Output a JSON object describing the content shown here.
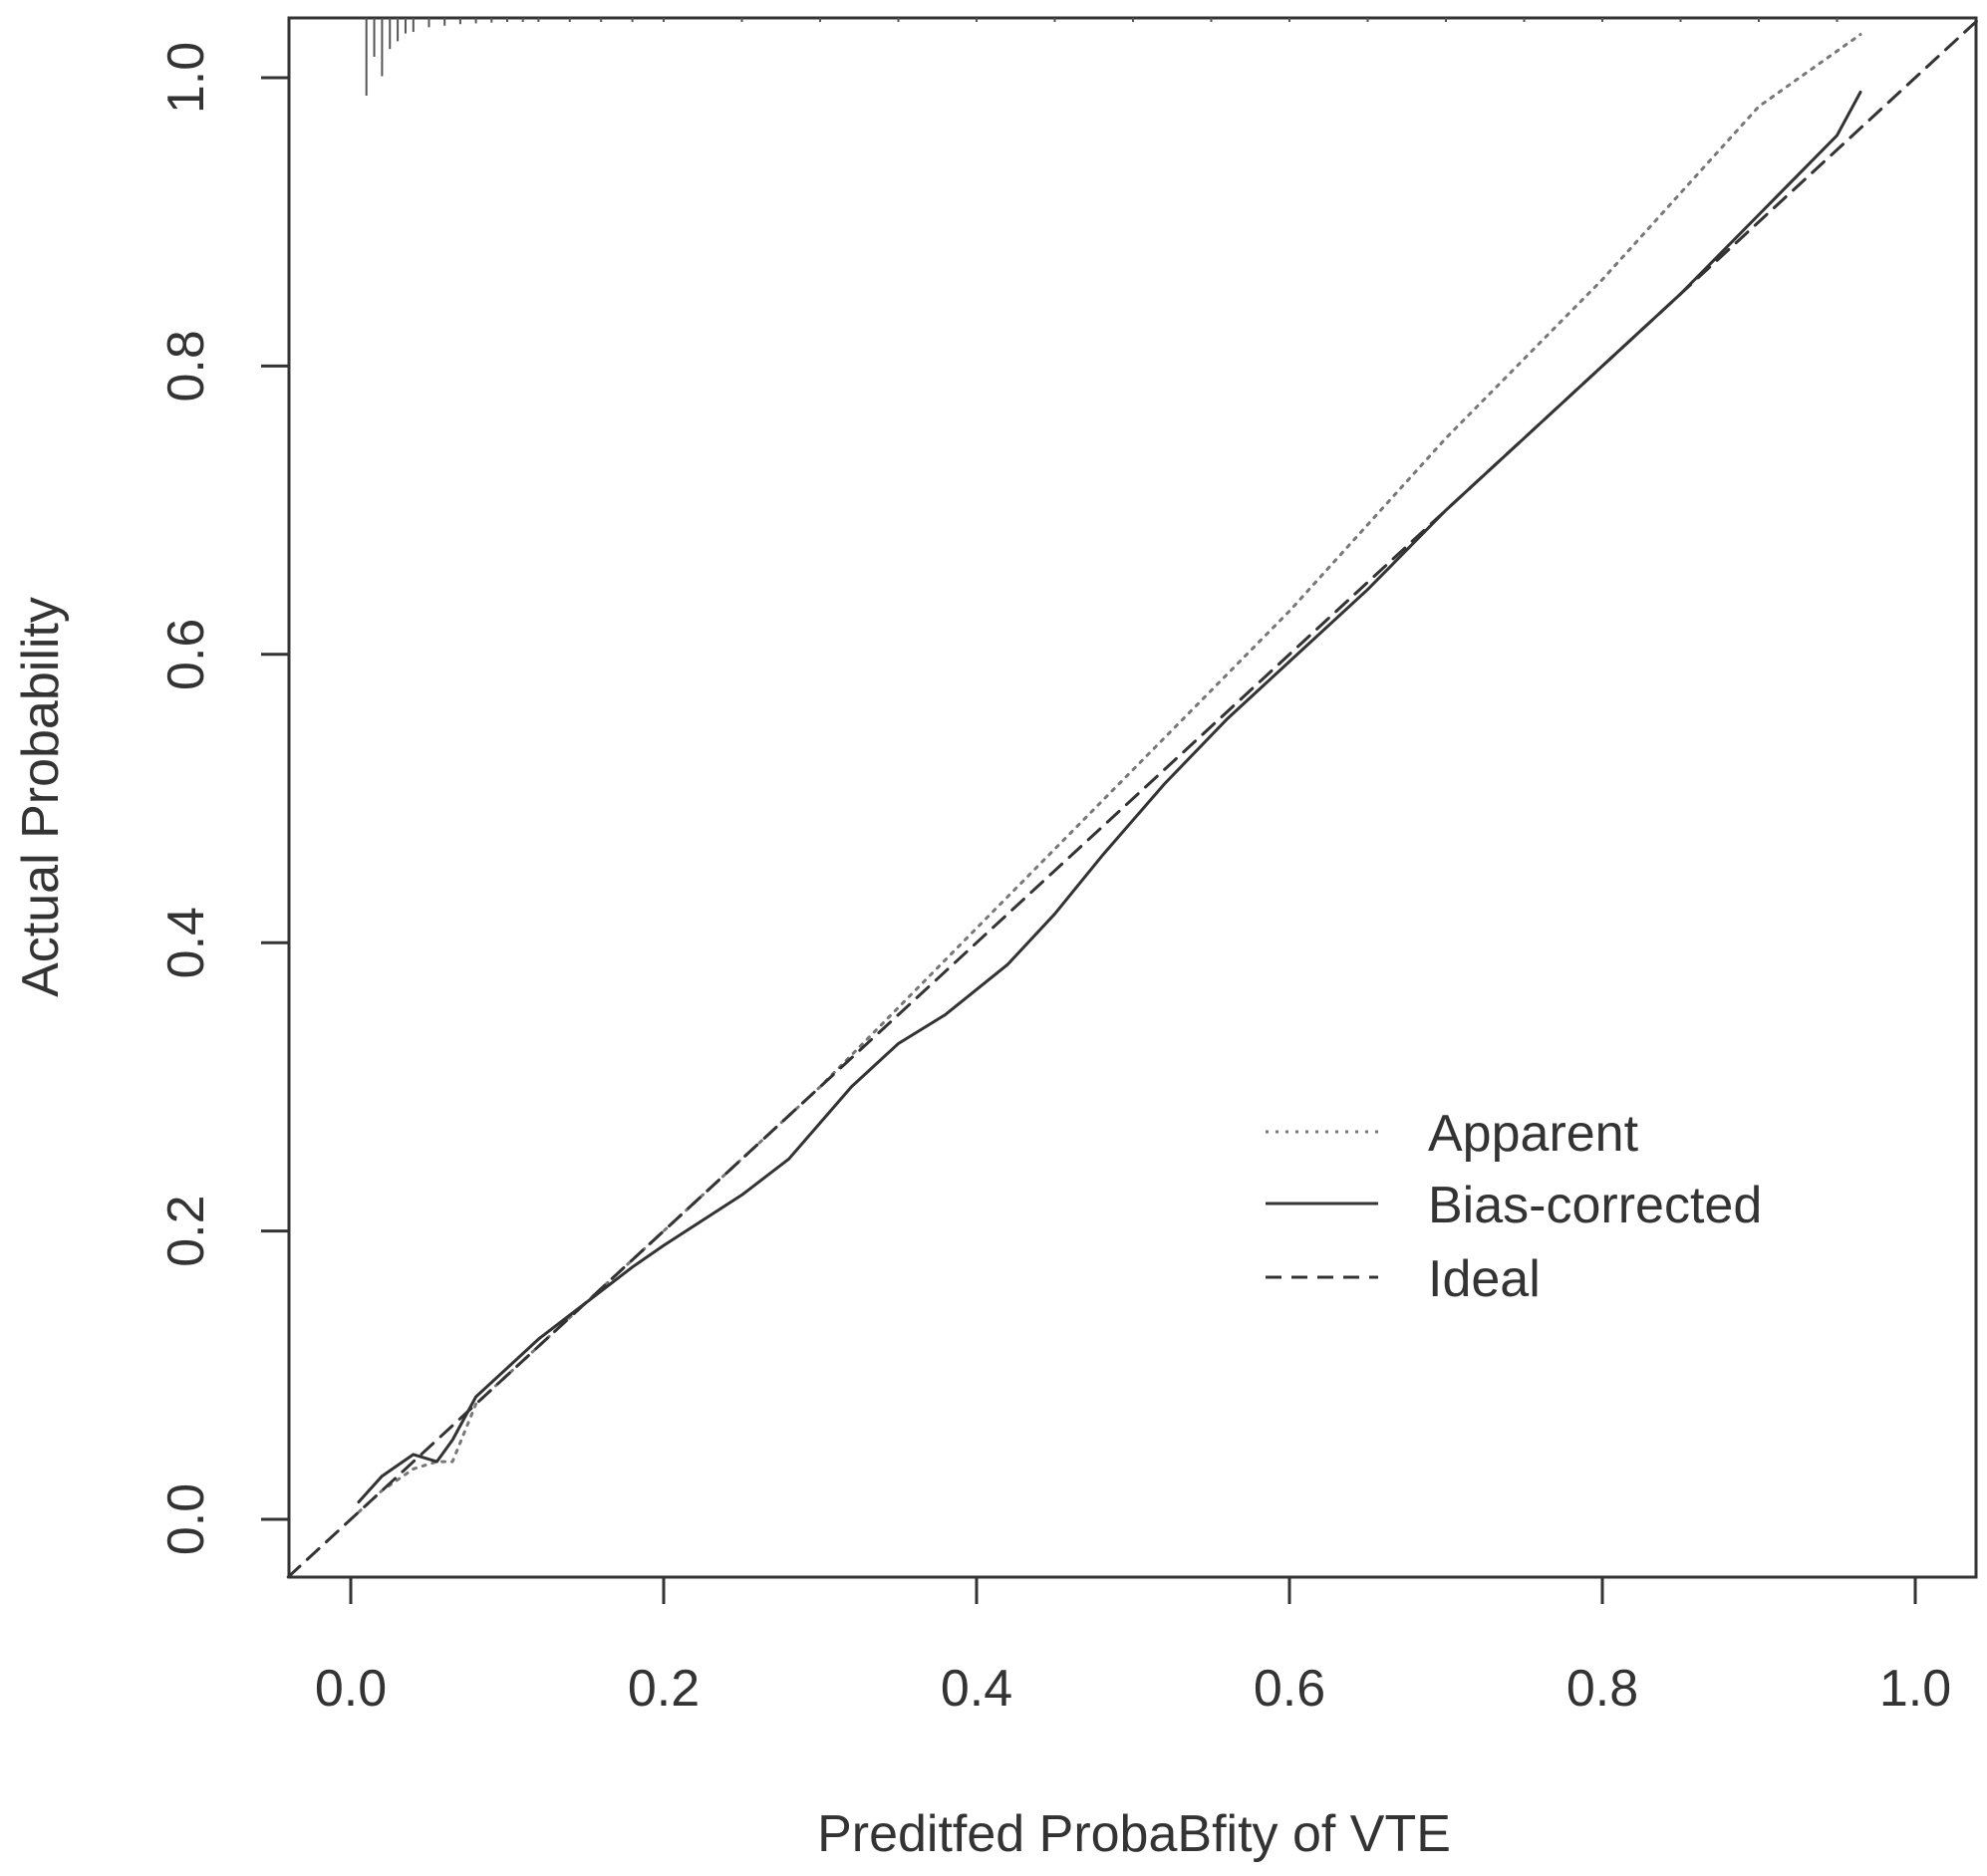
{
  "chart_data": {
    "type": "line",
    "title": "",
    "xlabel": "Preditfed ProbaBfity of VTE",
    "ylabel": "Actual Probability",
    "xlim": [
      -0.04,
      1.04
    ],
    "ylim": [
      -0.04,
      1.04
    ],
    "x_ticks": [
      "0.0",
      "0.2",
      "0.4",
      "0.6",
      "0.8",
      "1.0"
    ],
    "y_ticks": [
      "0.0",
      "0.2",
      "0.4",
      "0.6",
      "0.8",
      "1.0"
    ],
    "grid": false,
    "legend_position": "bottom-right",
    "series": [
      {
        "name": "Apparent",
        "style": "dotted",
        "color": "#777777",
        "x": [
          0.005,
          0.02,
          0.04,
          0.055,
          0.065,
          0.08,
          0.1,
          0.15,
          0.2,
          0.3,
          0.4,
          0.5,
          0.6,
          0.7,
          0.8,
          0.9,
          0.965
        ],
        "y": [
          0.005,
          0.02,
          0.035,
          0.04,
          0.04,
          0.08,
          0.1,
          0.15,
          0.2,
          0.3,
          0.41,
          0.52,
          0.63,
          0.75,
          0.86,
          0.98,
          1.03
        ]
      },
      {
        "name": "Bias-corrected",
        "style": "solid",
        "color": "#333333",
        "x": [
          0.005,
          0.02,
          0.04,
          0.055,
          0.065,
          0.08,
          0.1,
          0.12,
          0.15,
          0.18,
          0.2,
          0.25,
          0.28,
          0.3,
          0.32,
          0.35,
          0.38,
          0.42,
          0.45,
          0.48,
          0.52,
          0.56,
          0.6,
          0.65,
          0.7,
          0.75,
          0.8,
          0.85,
          0.9,
          0.95,
          0.965
        ],
        "y": [
          0.012,
          0.03,
          0.045,
          0.04,
          0.055,
          0.085,
          0.105,
          0.125,
          0.15,
          0.175,
          0.19,
          0.225,
          0.25,
          0.275,
          0.3,
          0.33,
          0.35,
          0.385,
          0.42,
          0.46,
          0.51,
          0.555,
          0.595,
          0.645,
          0.7,
          0.75,
          0.8,
          0.85,
          0.905,
          0.96,
          0.99
        ]
      },
      {
        "name": "Ideal",
        "style": "dashed",
        "color": "#333333",
        "x": [
          -0.04,
          1.04
        ],
        "y": [
          -0.04,
          1.04
        ]
      }
    ],
    "rug": {
      "position": "top",
      "x": [
        0.01,
        0.015,
        0.02,
        0.025,
        0.03,
        0.035,
        0.04,
        0.05,
        0.06,
        0.07,
        0.08,
        0.09,
        0.1,
        0.11,
        0.12,
        0.14,
        0.16,
        0.18,
        0.2,
        0.25,
        0.3,
        0.35,
        0.4,
        0.45,
        0.5,
        0.55,
        0.6,
        0.65,
        0.7,
        0.75,
        0.8,
        0.85,
        0.9,
        0.95
      ],
      "weight": [
        1.0,
        0.5,
        0.75,
        0.4,
        0.3,
        0.2,
        0.18,
        0.12,
        0.1,
        0.08,
        0.07,
        0.06,
        0.05,
        0.05,
        0.04,
        0.04,
        0.03,
        0.03,
        0.03,
        0.02,
        0.02,
        0.02,
        0.02,
        0.02,
        0.02,
        0.02,
        0.02,
        0.02,
        0.02,
        0.02,
        0.02,
        0.02,
        0.02,
        0.02
      ]
    }
  }
}
